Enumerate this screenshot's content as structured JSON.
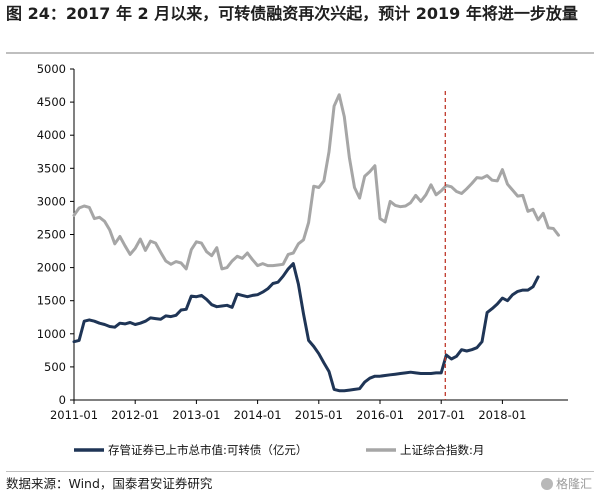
{
  "header": {
    "title": "图 24：2017 年 2 月以来，可转债融资再次兴起，预计 2019 年将进一步放量"
  },
  "footer": {
    "source": "数据来源：Wind，国泰君安证券研究",
    "watermark": "格隆汇"
  },
  "chart_data": {
    "type": "line",
    "title": "",
    "xlabel": "",
    "ylabel": "",
    "ylim": [
      0,
      5000
    ],
    "yticks": [
      "0",
      "500",
      "1000",
      "1500",
      "2000",
      "2500",
      "3000",
      "3500",
      "4000",
      "4500",
      "5000"
    ],
    "xticks": [
      "2011-01",
      "2012-01",
      "2013-01",
      "2014-01",
      "2015-01",
      "2016-01",
      "2017-01",
      "2018-01"
    ],
    "xrange": [
      "2011-01",
      "2018-12"
    ],
    "grid": false,
    "legend_position": "bottom",
    "vline": {
      "x": "2017-02",
      "color": "#c0392b",
      "style": "dashed"
    },
    "series": [
      {
        "name": "存管证券已上市总市值:可转债（亿元）",
        "color": "#1f3556",
        "points": [
          [
            "2011-01",
            880
          ],
          [
            "2011-02",
            900
          ],
          [
            "2011-03",
            1190
          ],
          [
            "2011-04",
            1210
          ],
          [
            "2011-05",
            1190
          ],
          [
            "2011-06",
            1160
          ],
          [
            "2011-07",
            1140
          ],
          [
            "2011-08",
            1110
          ],
          [
            "2011-09",
            1100
          ],
          [
            "2011-10",
            1160
          ],
          [
            "2011-11",
            1150
          ],
          [
            "2011-12",
            1170
          ],
          [
            "2012-01",
            1140
          ],
          [
            "2012-02",
            1160
          ],
          [
            "2012-03",
            1190
          ],
          [
            "2012-04",
            1240
          ],
          [
            "2012-05",
            1230
          ],
          [
            "2012-06",
            1220
          ],
          [
            "2012-07",
            1270
          ],
          [
            "2012-08",
            1260
          ],
          [
            "2012-09",
            1280
          ],
          [
            "2012-10",
            1360
          ],
          [
            "2012-11",
            1370
          ],
          [
            "2012-12",
            1570
          ],
          [
            "2013-01",
            1560
          ],
          [
            "2013-02",
            1580
          ],
          [
            "2013-03",
            1520
          ],
          [
            "2013-04",
            1440
          ],
          [
            "2013-05",
            1410
          ],
          [
            "2013-06",
            1420
          ],
          [
            "2013-07",
            1430
          ],
          [
            "2013-08",
            1400
          ],
          [
            "2013-09",
            1600
          ],
          [
            "2013-10",
            1580
          ],
          [
            "2013-11",
            1560
          ],
          [
            "2013-12",
            1580
          ],
          [
            "2014-01",
            1590
          ],
          [
            "2014-02",
            1630
          ],
          [
            "2014-03",
            1680
          ],
          [
            "2014-04",
            1760
          ],
          [
            "2014-05",
            1780
          ],
          [
            "2014-06",
            1870
          ],
          [
            "2014-07",
            1980
          ],
          [
            "2014-08",
            2060
          ],
          [
            "2014-09",
            1750
          ],
          [
            "2014-10",
            1300
          ],
          [
            "2014-11",
            900
          ],
          [
            "2014-12",
            810
          ],
          [
            "2015-01",
            700
          ],
          [
            "2015-02",
            560
          ],
          [
            "2015-03",
            430
          ],
          [
            "2015-04",
            160
          ],
          [
            "2015-05",
            140
          ],
          [
            "2015-06",
            140
          ],
          [
            "2015-07",
            150
          ],
          [
            "2015-08",
            160
          ],
          [
            "2015-09",
            170
          ],
          [
            "2015-10",
            270
          ],
          [
            "2015-11",
            330
          ],
          [
            "2015-12",
            360
          ],
          [
            "2016-01",
            360
          ],
          [
            "2016-02",
            370
          ],
          [
            "2016-03",
            380
          ],
          [
            "2016-04",
            390
          ],
          [
            "2016-05",
            400
          ],
          [
            "2016-06",
            410
          ],
          [
            "2016-07",
            420
          ],
          [
            "2016-08",
            410
          ],
          [
            "2016-09",
            400
          ],
          [
            "2016-10",
            400
          ],
          [
            "2016-11",
            400
          ],
          [
            "2016-12",
            410
          ],
          [
            "2017-01",
            410
          ],
          [
            "2017-02",
            680
          ],
          [
            "2017-03",
            620
          ],
          [
            "2017-04",
            660
          ],
          [
            "2017-05",
            760
          ],
          [
            "2017-06",
            740
          ],
          [
            "2017-07",
            760
          ],
          [
            "2017-08",
            790
          ],
          [
            "2017-09",
            880
          ],
          [
            "2017-10",
            1320
          ],
          [
            "2017-11",
            1380
          ],
          [
            "2017-12",
            1450
          ],
          [
            "2018-01",
            1540
          ],
          [
            "2018-02",
            1500
          ],
          [
            "2018-03",
            1590
          ],
          [
            "2018-04",
            1640
          ],
          [
            "2018-05",
            1660
          ],
          [
            "2018-06",
            1660
          ],
          [
            "2018-07",
            1710
          ],
          [
            "2018-08",
            1860
          ]
        ]
      },
      {
        "name": "上证综合指数:月",
        "color": "#a6a6a6",
        "points": [
          [
            "2011-01",
            2790
          ],
          [
            "2011-02",
            2900
          ],
          [
            "2011-03",
            2930
          ],
          [
            "2011-04",
            2910
          ],
          [
            "2011-05",
            2740
          ],
          [
            "2011-06",
            2760
          ],
          [
            "2011-07",
            2700
          ],
          [
            "2011-08",
            2570
          ],
          [
            "2011-09",
            2360
          ],
          [
            "2011-10",
            2470
          ],
          [
            "2011-11",
            2330
          ],
          [
            "2011-12",
            2200
          ],
          [
            "2012-01",
            2290
          ],
          [
            "2012-02",
            2430
          ],
          [
            "2012-03",
            2260
          ],
          [
            "2012-04",
            2400
          ],
          [
            "2012-05",
            2370
          ],
          [
            "2012-06",
            2230
          ],
          [
            "2012-07",
            2100
          ],
          [
            "2012-08",
            2050
          ],
          [
            "2012-09",
            2090
          ],
          [
            "2012-10",
            2070
          ],
          [
            "2012-11",
            1980
          ],
          [
            "2012-12",
            2270
          ],
          [
            "2013-01",
            2390
          ],
          [
            "2013-02",
            2370
          ],
          [
            "2013-03",
            2240
          ],
          [
            "2013-04",
            2180
          ],
          [
            "2013-05",
            2300
          ],
          [
            "2013-06",
            1980
          ],
          [
            "2013-07",
            2000
          ],
          [
            "2013-08",
            2100
          ],
          [
            "2013-09",
            2170
          ],
          [
            "2013-10",
            2140
          ],
          [
            "2013-11",
            2220
          ],
          [
            "2013-12",
            2120
          ],
          [
            "2014-01",
            2030
          ],
          [
            "2014-02",
            2060
          ],
          [
            "2014-03",
            2030
          ],
          [
            "2014-04",
            2030
          ],
          [
            "2014-05",
            2040
          ],
          [
            "2014-06",
            2050
          ],
          [
            "2014-07",
            2200
          ],
          [
            "2014-08",
            2220
          ],
          [
            "2014-09",
            2360
          ],
          [
            "2014-10",
            2420
          ],
          [
            "2014-11",
            2680
          ],
          [
            "2014-12",
            3230
          ],
          [
            "2015-01",
            3210
          ],
          [
            "2015-02",
            3310
          ],
          [
            "2015-03",
            3750
          ],
          [
            "2015-04",
            4440
          ],
          [
            "2015-05",
            4610
          ],
          [
            "2015-06",
            4280
          ],
          [
            "2015-07",
            3660
          ],
          [
            "2015-08",
            3210
          ],
          [
            "2015-09",
            3050
          ],
          [
            "2015-10",
            3380
          ],
          [
            "2015-11",
            3450
          ],
          [
            "2015-12",
            3540
          ],
          [
            "2016-01",
            2740
          ],
          [
            "2016-02",
            2690
          ],
          [
            "2016-03",
            3000
          ],
          [
            "2016-04",
            2940
          ],
          [
            "2016-05",
            2920
          ],
          [
            "2016-06",
            2930
          ],
          [
            "2016-07",
            2980
          ],
          [
            "2016-08",
            3090
          ],
          [
            "2016-09",
            3000
          ],
          [
            "2016-10",
            3100
          ],
          [
            "2016-11",
            3250
          ],
          [
            "2016-12",
            3100
          ],
          [
            "2017-01",
            3160
          ],
          [
            "2017-02",
            3240
          ],
          [
            "2017-03",
            3220
          ],
          [
            "2017-04",
            3150
          ],
          [
            "2017-05",
            3120
          ],
          [
            "2017-06",
            3190
          ],
          [
            "2017-07",
            3270
          ],
          [
            "2017-08",
            3360
          ],
          [
            "2017-09",
            3350
          ],
          [
            "2017-10",
            3390
          ],
          [
            "2017-11",
            3320
          ],
          [
            "2017-12",
            3310
          ],
          [
            "2018-01",
            3480
          ],
          [
            "2018-02",
            3260
          ],
          [
            "2018-03",
            3170
          ],
          [
            "2018-04",
            3080
          ],
          [
            "2018-05",
            3090
          ],
          [
            "2018-06",
            2850
          ],
          [
            "2018-07",
            2880
          ],
          [
            "2018-08",
            2720
          ],
          [
            "2018-09",
            2820
          ],
          [
            "2018-10",
            2600
          ],
          [
            "2018-11",
            2590
          ],
          [
            "2018-12",
            2490
          ]
        ]
      }
    ]
  }
}
